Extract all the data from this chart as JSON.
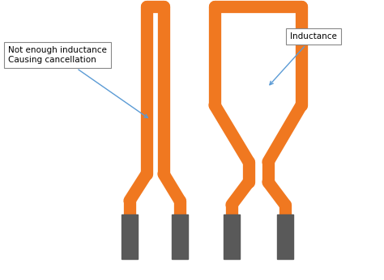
{
  "bg_color": "#ffffff",
  "orange": "#F07820",
  "gray": "#595959",
  "arrow_color": "#5B9BD5",
  "label1": "Not enough inductance\nCausing cancellation",
  "label2": "Inductance",
  "lw": 11
}
